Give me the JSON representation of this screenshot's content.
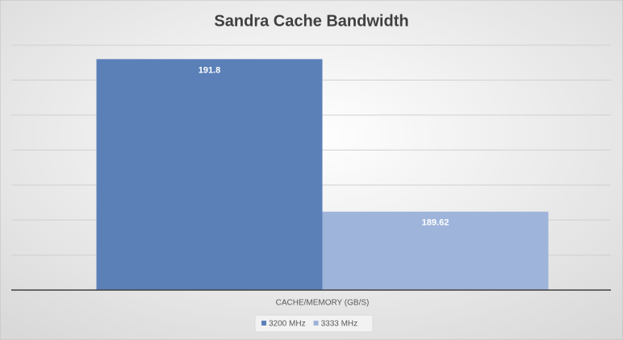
{
  "chart_data": {
    "type": "bar",
    "title": "Sandra Cache Bandwidth",
    "categories": [
      "CACHE/MEMORY (GB/S)"
    ],
    "series": [
      {
        "name": "3200 MHz",
        "color": "#5b80b8",
        "values": [
          191.8
        ]
      },
      {
        "name": "3333 MHz",
        "color": "#9fb4da",
        "values": [
          189.62
        ]
      }
    ],
    "ylim": [
      188.5,
      192
    ],
    "yticks": [
      188.5,
      189,
      189.5,
      190,
      190.5,
      191,
      191.5,
      192
    ],
    "grid": true,
    "legend": "bottom"
  }
}
